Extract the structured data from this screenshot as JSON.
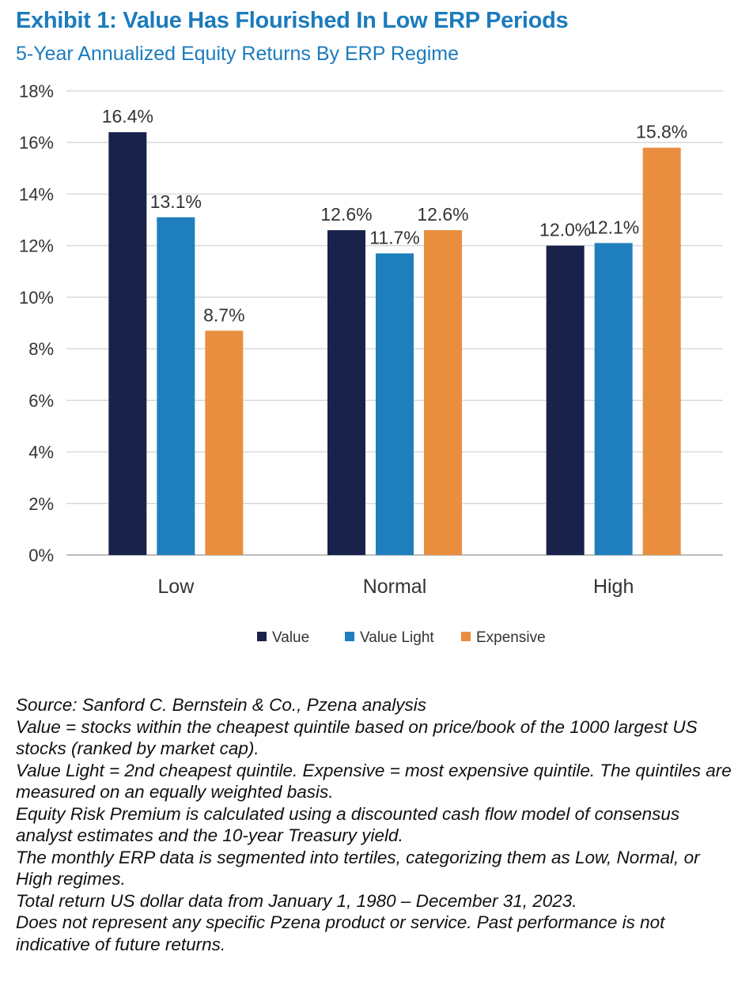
{
  "chart_data": {
    "type": "bar",
    "title": "Exhibit 1: Value Has Flourished In Low ERP Periods",
    "subtitle": "5-Year Annualized Equity Returns By ERP Regime",
    "categories": [
      "Low",
      "Normal",
      "High"
    ],
    "series": [
      {
        "name": "Value",
        "values": [
          16.4,
          12.6,
          12.0
        ],
        "labels": [
          "16.4%",
          "12.6%",
          "12.0%"
        ],
        "color": "#19224a"
      },
      {
        "name": "Value Light",
        "values": [
          13.1,
          11.7,
          12.1
        ],
        "labels": [
          "13.1%",
          "11.7%",
          "12.1%"
        ],
        "color": "#1f7fbd"
      },
      {
        "name": "Expensive",
        "values": [
          8.7,
          12.6,
          15.8
        ],
        "labels": [
          "8.7%",
          "12.6%",
          "15.8%"
        ],
        "color": "#e98e3e"
      }
    ],
    "yticks": [
      "0%",
      "2%",
      "4%",
      "6%",
      "8%",
      "10%",
      "12%",
      "14%",
      "16%",
      "18%"
    ],
    "ylim": [
      0,
      18
    ],
    "grid": true,
    "legend_position": "bottom"
  },
  "notes": [
    "Source: Sanford C. Bernstein & Co., Pzena analysis",
    "Value = stocks within the cheapest quintile based on price/book of the 1000 largest US stocks (ranked by market cap).",
    "Value Light = 2nd cheapest quintile. Expensive = most expensive quintile. The quintiles are measured on an equally weighted basis.",
    "Equity Risk Premium is calculated using a discounted cash flow model of consensus analyst estimates and the 10-year Treasury yield.",
    "The monthly ERP data is segmented into tertiles, categorizing them as Low, Normal, or High regimes.",
    "Total return US dollar data from January 1, 1980 – December 31, 2023.",
    "Does not represent any specific Pzena product or service. Past performance is not indicative of future returns."
  ]
}
